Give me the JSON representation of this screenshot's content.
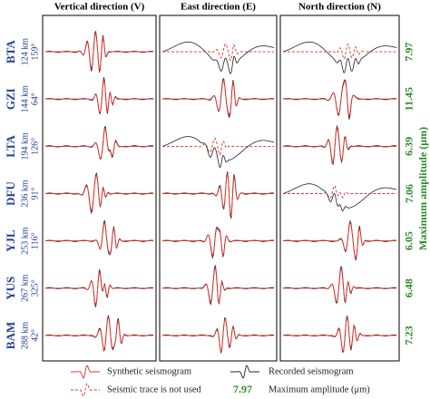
{
  "panels": [
    "Vertical direction (V)",
    "East direction (E)",
    "North direction (N)"
  ],
  "stations": [
    {
      "code": "BTA",
      "distance": "124 km",
      "azimuth": "159°",
      "max_amplitude": "7.97",
      "unused": [
        "E",
        "N"
      ]
    },
    {
      "code": "GZI",
      "distance": "144 km",
      "azimuth": "64°",
      "max_amplitude": "11.45",
      "unused": []
    },
    {
      "code": "LTA",
      "distance": "194 km",
      "azimuth": "126°",
      "max_amplitude": "6.39",
      "unused": [
        "E"
      ]
    },
    {
      "code": "DFU",
      "distance": "236 km",
      "azimuth": "91°",
      "max_amplitude": "7.06",
      "unused": [
        "N"
      ]
    },
    {
      "code": "YJL",
      "distance": "253 km",
      "azimuth": "116°",
      "max_amplitude": "6.05",
      "unused": []
    },
    {
      "code": "YUS",
      "distance": "267 km",
      "azimuth": "325°",
      "max_amplitude": "6.48",
      "unused": []
    },
    {
      "code": "BAM",
      "distance": "288 km",
      "azimuth": "42°",
      "max_amplitude": "7.23",
      "unused": []
    }
  ],
  "amplitude_label": "Maximum amplitude (μm)",
  "legend": {
    "synthetic": "Synthetic seismogram",
    "recorded": "Recorded seismogram",
    "unused": "Seismic trace is not used"
  }
}
